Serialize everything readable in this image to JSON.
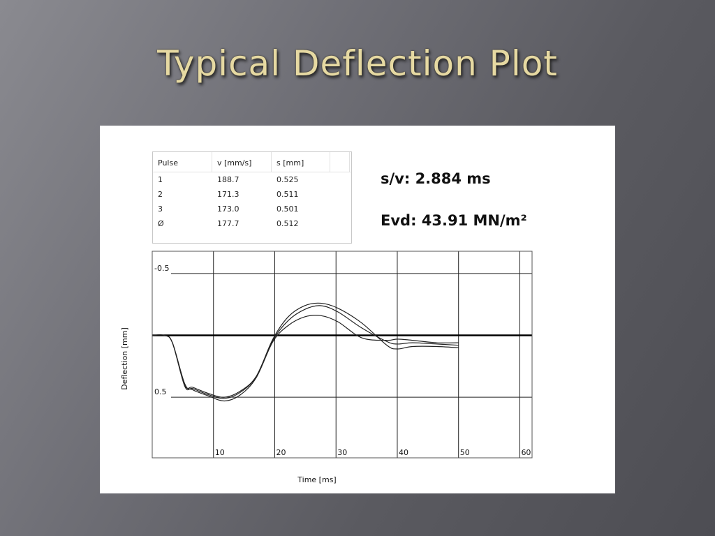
{
  "slide": {
    "title": "Typical Deflection Plot"
  },
  "table": {
    "headers": [
      "Pulse",
      "v [mm/s]",
      "s [mm]"
    ],
    "rows": [
      [
        "1",
        "188.7",
        "0.525"
      ],
      [
        "2",
        "171.3",
        "0.511"
      ],
      [
        "3",
        "173.0",
        "0.501"
      ],
      [
        "Ø",
        "177.7",
        "0.512"
      ]
    ]
  },
  "results": {
    "sv": "s/v: 2.884 ms",
    "evd": "Evd: 43.91 MN/m²"
  },
  "chart_data": {
    "type": "line",
    "xlabel": "Time [ms]",
    "ylabel": "Deflection [mm]",
    "xlim": [
      0,
      62
    ],
    "ylim": [
      0.99,
      -0.68
    ],
    "x_ticks": [
      10,
      20,
      30,
      40,
      50,
      60
    ],
    "x_tick_labels": [
      "10",
      "20",
      "30",
      "40",
      "50",
      "60"
    ],
    "y_ticks": [
      -0.5,
      0.5
    ],
    "y_tick_labels": [
      "-0.5",
      "0.5"
    ],
    "grid": true,
    "series": [
      {
        "x": [
          0,
          2,
          3.3,
          5.3,
          6.6,
          9.2,
          11.8,
          14.4,
          17.0,
          19.7,
          22.2,
          24.9,
          27.5,
          30.3,
          34.2,
          38.3,
          40.0,
          42.5,
          46.5,
          50
        ],
        "y": [
          0.0,
          0.0,
          0.06,
          0.4,
          0.42,
          0.47,
          0.5,
          0.45,
          0.33,
          0.04,
          -0.12,
          -0.21,
          -0.24,
          -0.19,
          -0.06,
          0.05,
          0.07,
          0.06,
          0.07,
          0.08
        ]
      },
      {
        "x": [
          0,
          2,
          3.3,
          5.3,
          6.6,
          9.2,
          11.8,
          14.4,
          17.0,
          19.7,
          22.2,
          24.9,
          27.5,
          30.3,
          34.2,
          38.3,
          40.0,
          42.5,
          46.5,
          50
        ],
        "y": [
          0.0,
          0.0,
          0.06,
          0.41,
          0.43,
          0.48,
          0.51,
          0.46,
          0.33,
          0.03,
          -0.15,
          -0.24,
          -0.26,
          -0.22,
          -0.1,
          0.08,
          0.11,
          0.09,
          0.09,
          0.1
        ]
      },
      {
        "x": [
          0,
          2,
          3.3,
          5.3,
          6.6,
          9.2,
          11.8,
          14.4,
          17.0,
          19.7,
          22.2,
          24.9,
          27.5,
          30.3,
          34.2,
          38.3,
          40.0,
          42.5,
          46.5,
          50
        ],
        "y": [
          0.0,
          0.0,
          0.06,
          0.39,
          0.44,
          0.49,
          0.53,
          0.48,
          0.34,
          0.05,
          -0.08,
          -0.15,
          -0.16,
          -0.11,
          0.02,
          0.04,
          0.03,
          0.04,
          0.06,
          0.06
        ]
      }
    ]
  }
}
